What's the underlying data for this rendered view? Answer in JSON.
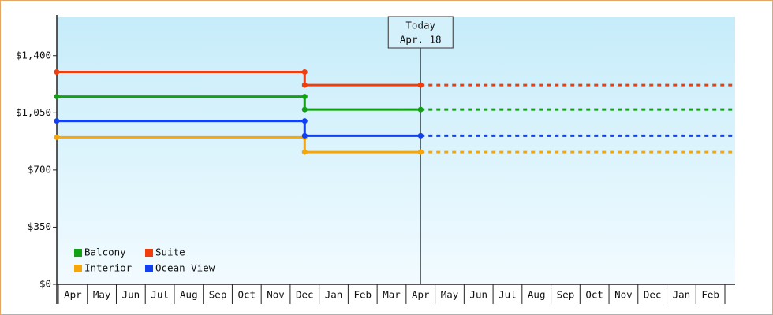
{
  "chart_data": {
    "type": "step-line",
    "categories": [
      "Apr",
      "May",
      "Jun",
      "Jul",
      "Aug",
      "Sep",
      "Oct",
      "Nov",
      "Dec",
      "Jan",
      "Feb",
      "Mar",
      "Apr",
      "May",
      "Jun",
      "Jul",
      "Aug",
      "Sep",
      "Oct",
      "Nov",
      "Dec",
      "Jan",
      "Feb"
    ],
    "series": [
      {
        "name": "Balcony",
        "color": "#14a014",
        "values": [
          1150,
          1150,
          1150,
          1150,
          1150,
          1150,
          1150,
          1150,
          1070,
          1070,
          1070,
          1070,
          1070,
          null,
          null,
          null,
          null,
          null,
          null,
          null,
          null,
          null,
          null
        ]
      },
      {
        "name": "Suite",
        "color": "#f23c0c",
        "values": [
          1300,
          1300,
          1300,
          1300,
          1300,
          1300,
          1300,
          1300,
          1220,
          1220,
          1220,
          1220,
          1220,
          null,
          null,
          null,
          null,
          null,
          null,
          null,
          null,
          null,
          null
        ]
      },
      {
        "name": "Interior",
        "color": "#f5a60a",
        "values": [
          900,
          900,
          900,
          900,
          900,
          900,
          900,
          900,
          810,
          810,
          810,
          810,
          810,
          null,
          null,
          null,
          null,
          null,
          null,
          null,
          null,
          null,
          null
        ]
      },
      {
        "name": "Ocean View",
        "color": "#1040f0",
        "values": [
          1000,
          1000,
          1000,
          1000,
          1000,
          1000,
          1000,
          1000,
          910,
          910,
          910,
          910,
          910,
          null,
          null,
          null,
          null,
          null,
          null,
          null,
          null,
          null,
          null
        ]
      }
    ],
    "ylim": [
      0,
      1640
    ],
    "yticks": [
      {
        "value": 0,
        "label": "$0"
      },
      {
        "value": 350,
        "label": "$350"
      },
      {
        "value": 700,
        "label": "$700"
      },
      {
        "value": 1050,
        "label": "$1,050"
      },
      {
        "value": 1400,
        "label": "$1,400"
      }
    ],
    "today": {
      "line1": "Today",
      "line2": "Apr. 18",
      "index": 12
    },
    "legend": "lower-left"
  }
}
